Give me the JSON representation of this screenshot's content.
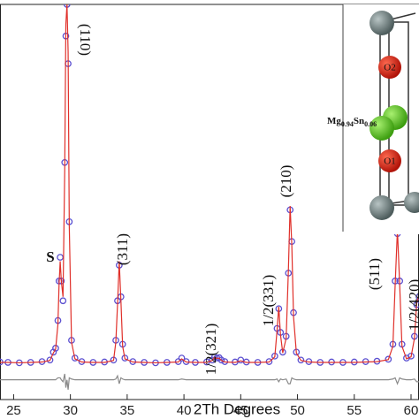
{
  "chart_data": {
    "type": "line",
    "x_label": "2Th Degrees",
    "xlim": [
      23.8,
      60.7
    ],
    "xticks": [
      25,
      30,
      35,
      40,
      45,
      50,
      55,
      60
    ],
    "ylim": [
      0,
      100
    ],
    "x": [
      23.8,
      24.5,
      25.5,
      26.5,
      27.5,
      28.2,
      28.5,
      28.7,
      28.9,
      29.0,
      29.1,
      29.2,
      29.35,
      29.5,
      29.6,
      29.7,
      29.8,
      29.9,
      30.1,
      30.4,
      31,
      32,
      33,
      33.8,
      34.0,
      34.15,
      34.3,
      34.45,
      34.6,
      34.8,
      35.5,
      36.5,
      37.5,
      38.5,
      39.5,
      39.8,
      40.2,
      41,
      42,
      42.5,
      42.7,
      42.9,
      43.1,
      43.3,
      43.6,
      44.5,
      45,
      45.5,
      46.5,
      47.5,
      48.0,
      48.2,
      48.35,
      48.5,
      48.7,
      49.0,
      49.2,
      49.35,
      49.5,
      49.65,
      49.9,
      50.3,
      51,
      52,
      53,
      54,
      55,
      56,
      57,
      58,
      58.4,
      58.6,
      58.8,
      59.0,
      59.2,
      59.6,
      60,
      60.3,
      60.5,
      60.7
    ],
    "series": [
      {
        "color": "#5b4fd0",
        "marker": "circle",
        "values": [
          9.5,
          9.4,
          9.3,
          9.4,
          9.6,
          10,
          12,
          13,
          20,
          30,
          36,
          30,
          25,
          60,
          92,
          100,
          85,
          45,
          15,
          10.5,
          9.6,
          9.4,
          9.5,
          10,
          15,
          25,
          34,
          26,
          14,
          10.5,
          9.6,
          9.4,
          9.3,
          9.4,
          9.6,
          10.5,
          9.6,
          9.4,
          9.5,
          10,
          10.8,
          10.5,
          10.6,
          10,
          9.6,
          9.5,
          10,
          9.5,
          9.4,
          9.6,
          11,
          18,
          23,
          17,
          12,
          16,
          32,
          48,
          40,
          22,
          12,
          10,
          9.6,
          9.4,
          9.5,
          9.4,
          9.5,
          9.6,
          9.7,
          10.2,
          14,
          30,
          42,
          30,
          14,
          10.5,
          11,
          16,
          24,
          26
        ]
      },
      {
        "color": "#e0302a",
        "marker": "none",
        "values": [
          9.4,
          9.4,
          9.3,
          9.4,
          9.5,
          9.9,
          11.8,
          12.8,
          19,
          29,
          35,
          30,
          26,
          58,
          95,
          100,
          88,
          44,
          14.5,
          10.3,
          9.5,
          9.4,
          9.4,
          9.9,
          14.5,
          24,
          35,
          25,
          13.5,
          10.3,
          9.5,
          9.4,
          9.3,
          9.4,
          9.5,
          10.3,
          9.5,
          9.4,
          9.4,
          9.9,
          10.7,
          10.4,
          10.5,
          9.9,
          9.5,
          9.4,
          9.8,
          9.4,
          9.4,
          9.5,
          10.8,
          17.5,
          23.5,
          16.5,
          11.8,
          15.5,
          33,
          49,
          39,
          21,
          11.8,
          9.9,
          9.5,
          9.4,
          9.4,
          9.4,
          9.4,
          9.5,
          9.6,
          10.1,
          13.5,
          29,
          43,
          29,
          13.5,
          10.3,
          10.8,
          15.5,
          24.5,
          26.5
        ]
      },
      {
        "color": "#8a8a8a",
        "marker": "none",
        "values": [
          5,
          5,
          5,
          5,
          5,
          5,
          5,
          5,
          5.5,
          5.5,
          5.5,
          5,
          4.5,
          6.5,
          3,
          5,
          2.5,
          5.5,
          5.2,
          5,
          5,
          5,
          5,
          5,
          5.2,
          6,
          4,
          5.5,
          5.2,
          5,
          5,
          5,
          5,
          5,
          5,
          5.2,
          5,
          5,
          5,
          5,
          5,
          5,
          5,
          5,
          5,
          5,
          5,
          5,
          5,
          5,
          5,
          5.2,
          4.5,
          5.2,
          5,
          5.2,
          4,
          4,
          5.5,
          5.2,
          5,
          5,
          5,
          5,
          5,
          5,
          5,
          5,
          5,
          5,
          5.2,
          5.5,
          4,
          5.5,
          5.2,
          5,
          5,
          5.2,
          4.5,
          4.5
        ]
      }
    ],
    "annotations": [
      "(110)",
      "S",
      "(311)",
      "1/2(321)",
      "1/2(331)",
      "(210)",
      "(511)",
      "1/2(420)"
    ],
    "inset_labels": {
      "o2": "O2",
      "o1": "O1",
      "site": [
        "Mg",
        "0.94",
        "Sn",
        "0.06"
      ]
    }
  }
}
